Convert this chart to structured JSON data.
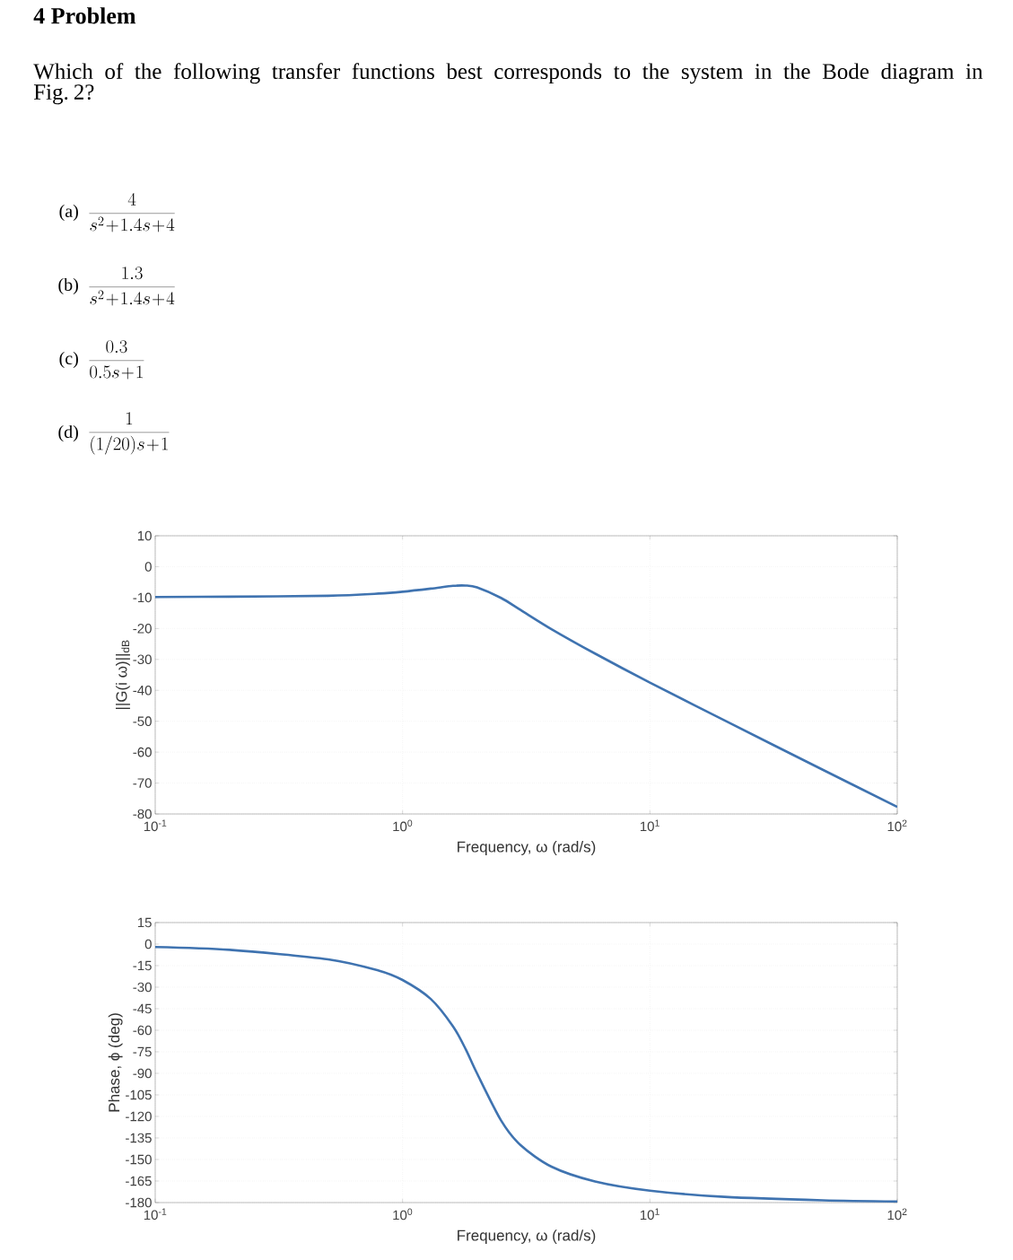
{
  "chart_data": [
    {
      "type": "line",
      "title": "4 Problem",
      "subtitle": "Which of the following transfer functions best corresponds to the system in the Bode diagram in Fig. 2?",
      "annotations": [
        "(a)",
        "\\frac{4}{s^2\\!+\\!1.4s\\!+\\!4}",
        "(b)",
        "\\frac{1.3}{s^2\\!+\\!1.4s\\!+\\!4}",
        "(c)",
        "\\frac{0.3}{0.5s\\!+\\!1}",
        "(d)",
        "\\frac{1}{(1/20)s\\!+\\!1}"
      ],
      "xlabel": "Frequency,  ω (rad/s)",
      "ylabel": "||G(i ω)||$_{dB}$",
      "log": "x",
      "grid": true,
      "x": [
        0.1,
        0.2,
        0.5,
        0.8,
        1,
        1.3,
        1.6,
        1.8,
        2,
        2.5,
        3,
        4,
        6,
        10,
        20,
        50,
        100
      ],
      "xlim": [
        0.1,
        100
      ],
      "xticks": [
        {
          "value": 0.1,
          "label": "10$^{-1}$"
        },
        {
          "value": 1,
          "label": "10$^{0}$"
        },
        {
          "value": 10,
          "label": "10$^{1}$"
        },
        {
          "value": 100,
          "label": "10$^{2}$"
        }
      ],
      "ylim": [
        -80,
        10
      ],
      "yticks": [
        -80,
        -70,
        -60,
        -50,
        -40,
        -30,
        -20,
        -10,
        0,
        10
      ],
      "series": [
        {
          "color": "#3f73b0",
          "values": [
            -9.8,
            -9.7,
            -9.4,
            -8.7,
            -8.1,
            -7.1,
            -6.2,
            -6.1,
            -6.7,
            -10.1,
            -14.0,
            -20.2,
            -28.1,
            -37.5,
            -49.7,
            -65.7,
            -77.7
          ]
        }
      ]
    },
    {
      "type": "line",
      "xlabel": "Frequency,  ω (rad/s)",
      "ylabel": "Phase,  ϕ (deg)",
      "log": "x",
      "grid": true,
      "x": [
        0.1,
        0.2,
        0.5,
        0.8,
        1,
        1.3,
        1.6,
        1.8,
        2,
        2.5,
        3,
        4,
        6,
        10,
        20,
        50,
        100
      ],
      "xlim": [
        0.1,
        100
      ],
      "xticks": [
        {
          "value": 0.1,
          "label": "10$^{-1}$"
        },
        {
          "value": 1,
          "label": "10$^{0}$"
        },
        {
          "value": 10,
          "label": "10$^{1}$"
        },
        {
          "value": 100,
          "label": "10$^{2}$"
        }
      ],
      "ylim": [
        -180,
        15
      ],
      "yticks": [
        -180,
        -165,
        -150,
        -135,
        -120,
        -105,
        -90,
        -75,
        -60,
        -45,
        -30,
        -15,
        0,
        15
      ],
      "series": [
        {
          "color": "#3f73b0",
          "values": [
            -2.0,
            -4.0,
            -10.6,
            -18.4,
            -25.0,
            -38.2,
            -57.3,
            -73.2,
            -90.0,
            -122.7,
            -140.0,
            -155.0,
            -165.3,
            -171.7,
            -176.0,
            -178.4,
            -179.2
          ]
        }
      ]
    }
  ]
}
